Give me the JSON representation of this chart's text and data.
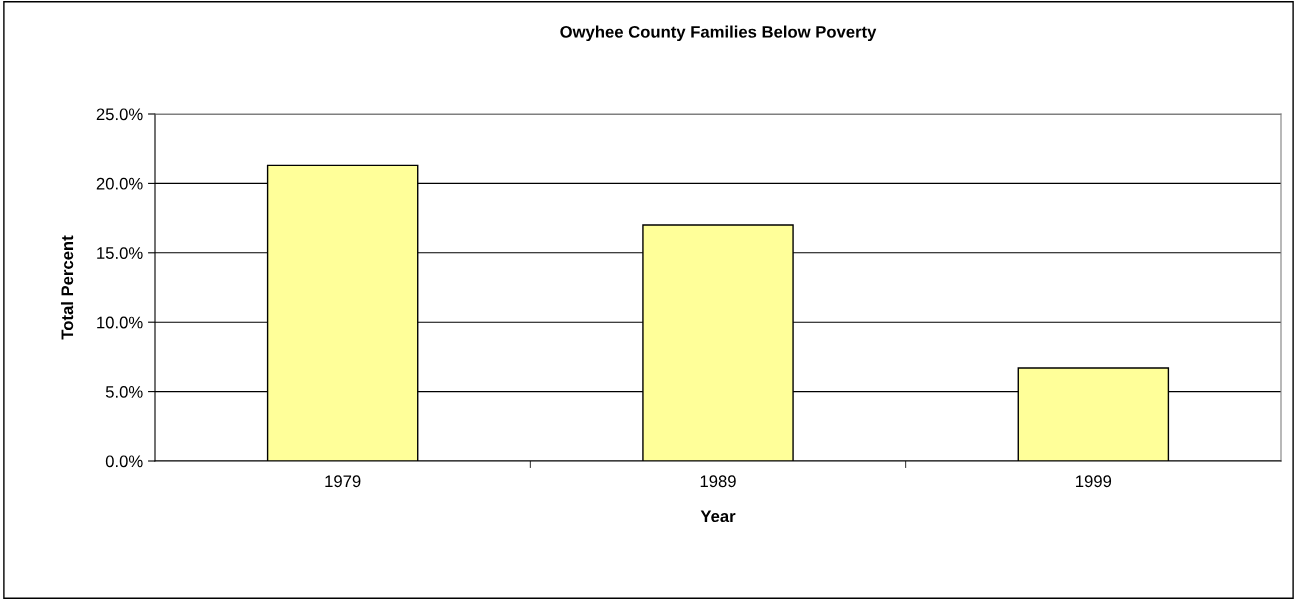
{
  "chart_data": {
    "type": "bar",
    "title": "Owyhee County Families Below Poverty",
    "xlabel": "Year",
    "ylabel": "Total Percent",
    "categories": [
      "1979",
      "1989",
      "1999"
    ],
    "values": [
      21.3,
      17.0,
      6.7
    ],
    "color": "#ffff99",
    "ylim": [
      0,
      25
    ],
    "yticks": [
      {
        "value": 0,
        "label": "0.0%"
      },
      {
        "value": 5,
        "label": "5.0%"
      },
      {
        "value": 10,
        "label": "10.0%"
      },
      {
        "value": 15,
        "label": "15.0%"
      },
      {
        "value": 20,
        "label": "20.0%"
      },
      {
        "value": 25,
        "label": "25.0%"
      }
    ],
    "grid": "y",
    "legend": false
  }
}
